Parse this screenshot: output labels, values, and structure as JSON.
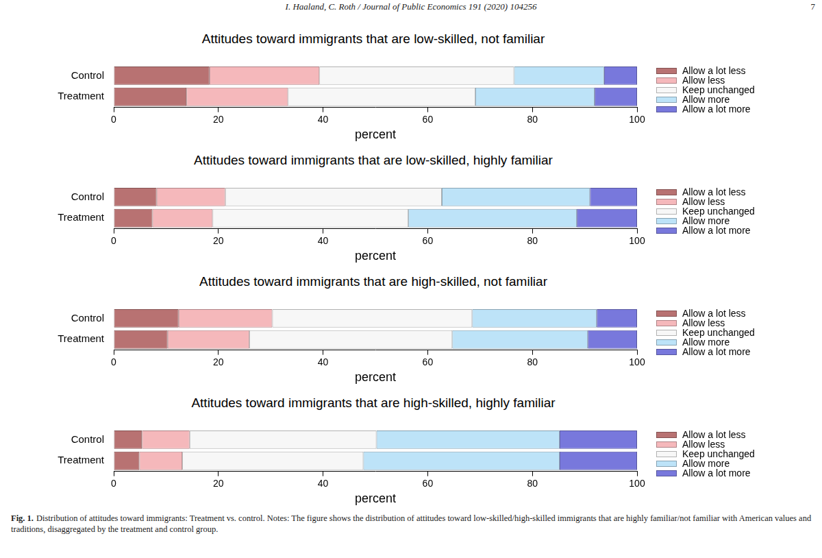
{
  "header": {
    "running_head": "I. Haaland, C. Roth / Journal of Public Economics 191 (2020) 104256",
    "page": "7"
  },
  "chart_data": [
    {
      "type": "bar",
      "title": "Attitudes toward immigrants that are low-skilled, not familiar",
      "orientation": "horizontal",
      "stacked": true,
      "grid": false,
      "legend": "right",
      "categories": [
        "Control",
        "Treatment"
      ],
      "xlabel": "percent",
      "xlim": [
        0,
        100
      ],
      "xticks": [
        0,
        20,
        40,
        60,
        80,
        100
      ],
      "series": [
        {
          "name": "Allow a lot less",
          "color": "#b87272",
          "values": [
            18.3,
            13.9
          ]
        },
        {
          "name": "Allow less",
          "color": "#f5b8bb",
          "values": [
            21.0,
            19.4
          ]
        },
        {
          "name": "Keep unchanged",
          "color": "#f7f7f7",
          "values": [
            37.2,
            35.8
          ]
        },
        {
          "name": "Allow more",
          "color": "#bde3f8",
          "values": [
            17.2,
            22.8
          ]
        },
        {
          "name": "Allow a lot more",
          "color": "#7878dc",
          "values": [
            6.3,
            8.1
          ]
        }
      ]
    },
    {
      "type": "bar",
      "title": "Attitudes toward immigrants that are low-skilled, highly familiar",
      "orientation": "horizontal",
      "stacked": true,
      "grid": false,
      "legend": "right",
      "categories": [
        "Control",
        "Treatment"
      ],
      "xlabel": "percent",
      "xlim": [
        0,
        100
      ],
      "xticks": [
        0,
        20,
        40,
        60,
        80,
        100
      ],
      "series": [
        {
          "name": "Allow a lot less",
          "color": "#b87272",
          "values": [
            8.2,
            7.4
          ]
        },
        {
          "name": "Allow less",
          "color": "#f5b8bb",
          "values": [
            13.1,
            11.5
          ]
        },
        {
          "name": "Keep unchanged",
          "color": "#f7f7f7",
          "values": [
            41.4,
            37.4
          ]
        },
        {
          "name": "Allow more",
          "color": "#bde3f8",
          "values": [
            28.3,
            32.2
          ]
        },
        {
          "name": "Allow a lot more",
          "color": "#7878dc",
          "values": [
            9.0,
            11.5
          ]
        }
      ]
    },
    {
      "type": "bar",
      "title": "Attitudes toward immigrants that are high-skilled, not familiar",
      "orientation": "horizontal",
      "stacked": true,
      "grid": false,
      "legend": "right",
      "categories": [
        "Control",
        "Treatment"
      ],
      "xlabel": "percent",
      "xlim": [
        0,
        100
      ],
      "xticks": [
        0,
        20,
        40,
        60,
        80,
        100
      ],
      "series": [
        {
          "name": "Allow a lot less",
          "color": "#b87272",
          "values": [
            12.4,
            10.3
          ]
        },
        {
          "name": "Allow less",
          "color": "#f5b8bb",
          "values": [
            17.9,
            15.6
          ]
        },
        {
          "name": "Keep unchanged",
          "color": "#f7f7f7",
          "values": [
            38.2,
            38.8
          ]
        },
        {
          "name": "Allow more",
          "color": "#bde3f8",
          "values": [
            23.8,
            25.9
          ]
        },
        {
          "name": "Allow a lot more",
          "color": "#7878dc",
          "values": [
            7.7,
            9.4
          ]
        }
      ]
    },
    {
      "type": "bar",
      "title": "Attitudes toward immigrants that are high-skilled, highly familiar",
      "orientation": "horizontal",
      "stacked": true,
      "grid": false,
      "legend": "right",
      "categories": [
        "Control",
        "Treatment"
      ],
      "xlabel": "percent",
      "xlim": [
        0,
        100
      ],
      "xticks": [
        0,
        20,
        40,
        60,
        80,
        100
      ],
      "series": [
        {
          "name": "Allow a lot less",
          "color": "#b87272",
          "values": [
            5.4,
            4.9
          ]
        },
        {
          "name": "Allow less",
          "color": "#f5b8bb",
          "values": [
            9.1,
            8.2
          ]
        },
        {
          "name": "Keep unchanged",
          "color": "#f7f7f7",
          "values": [
            35.7,
            34.6
          ]
        },
        {
          "name": "Allow more",
          "color": "#bde3f8",
          "values": [
            35.0,
            37.5
          ]
        },
        {
          "name": "Allow a lot more",
          "color": "#7878dc",
          "values": [
            14.8,
            14.8
          ]
        }
      ]
    }
  ],
  "caption": {
    "label": "Fig. 1.",
    "text": "Distribution of attitudes toward immigrants: Treatment vs. control. Notes: The figure shows the distribution of attitudes toward low-skilled/high-skilled immigrants that are highly familiar/not familiar with American values and traditions, disaggregated by the treatment and control group."
  }
}
